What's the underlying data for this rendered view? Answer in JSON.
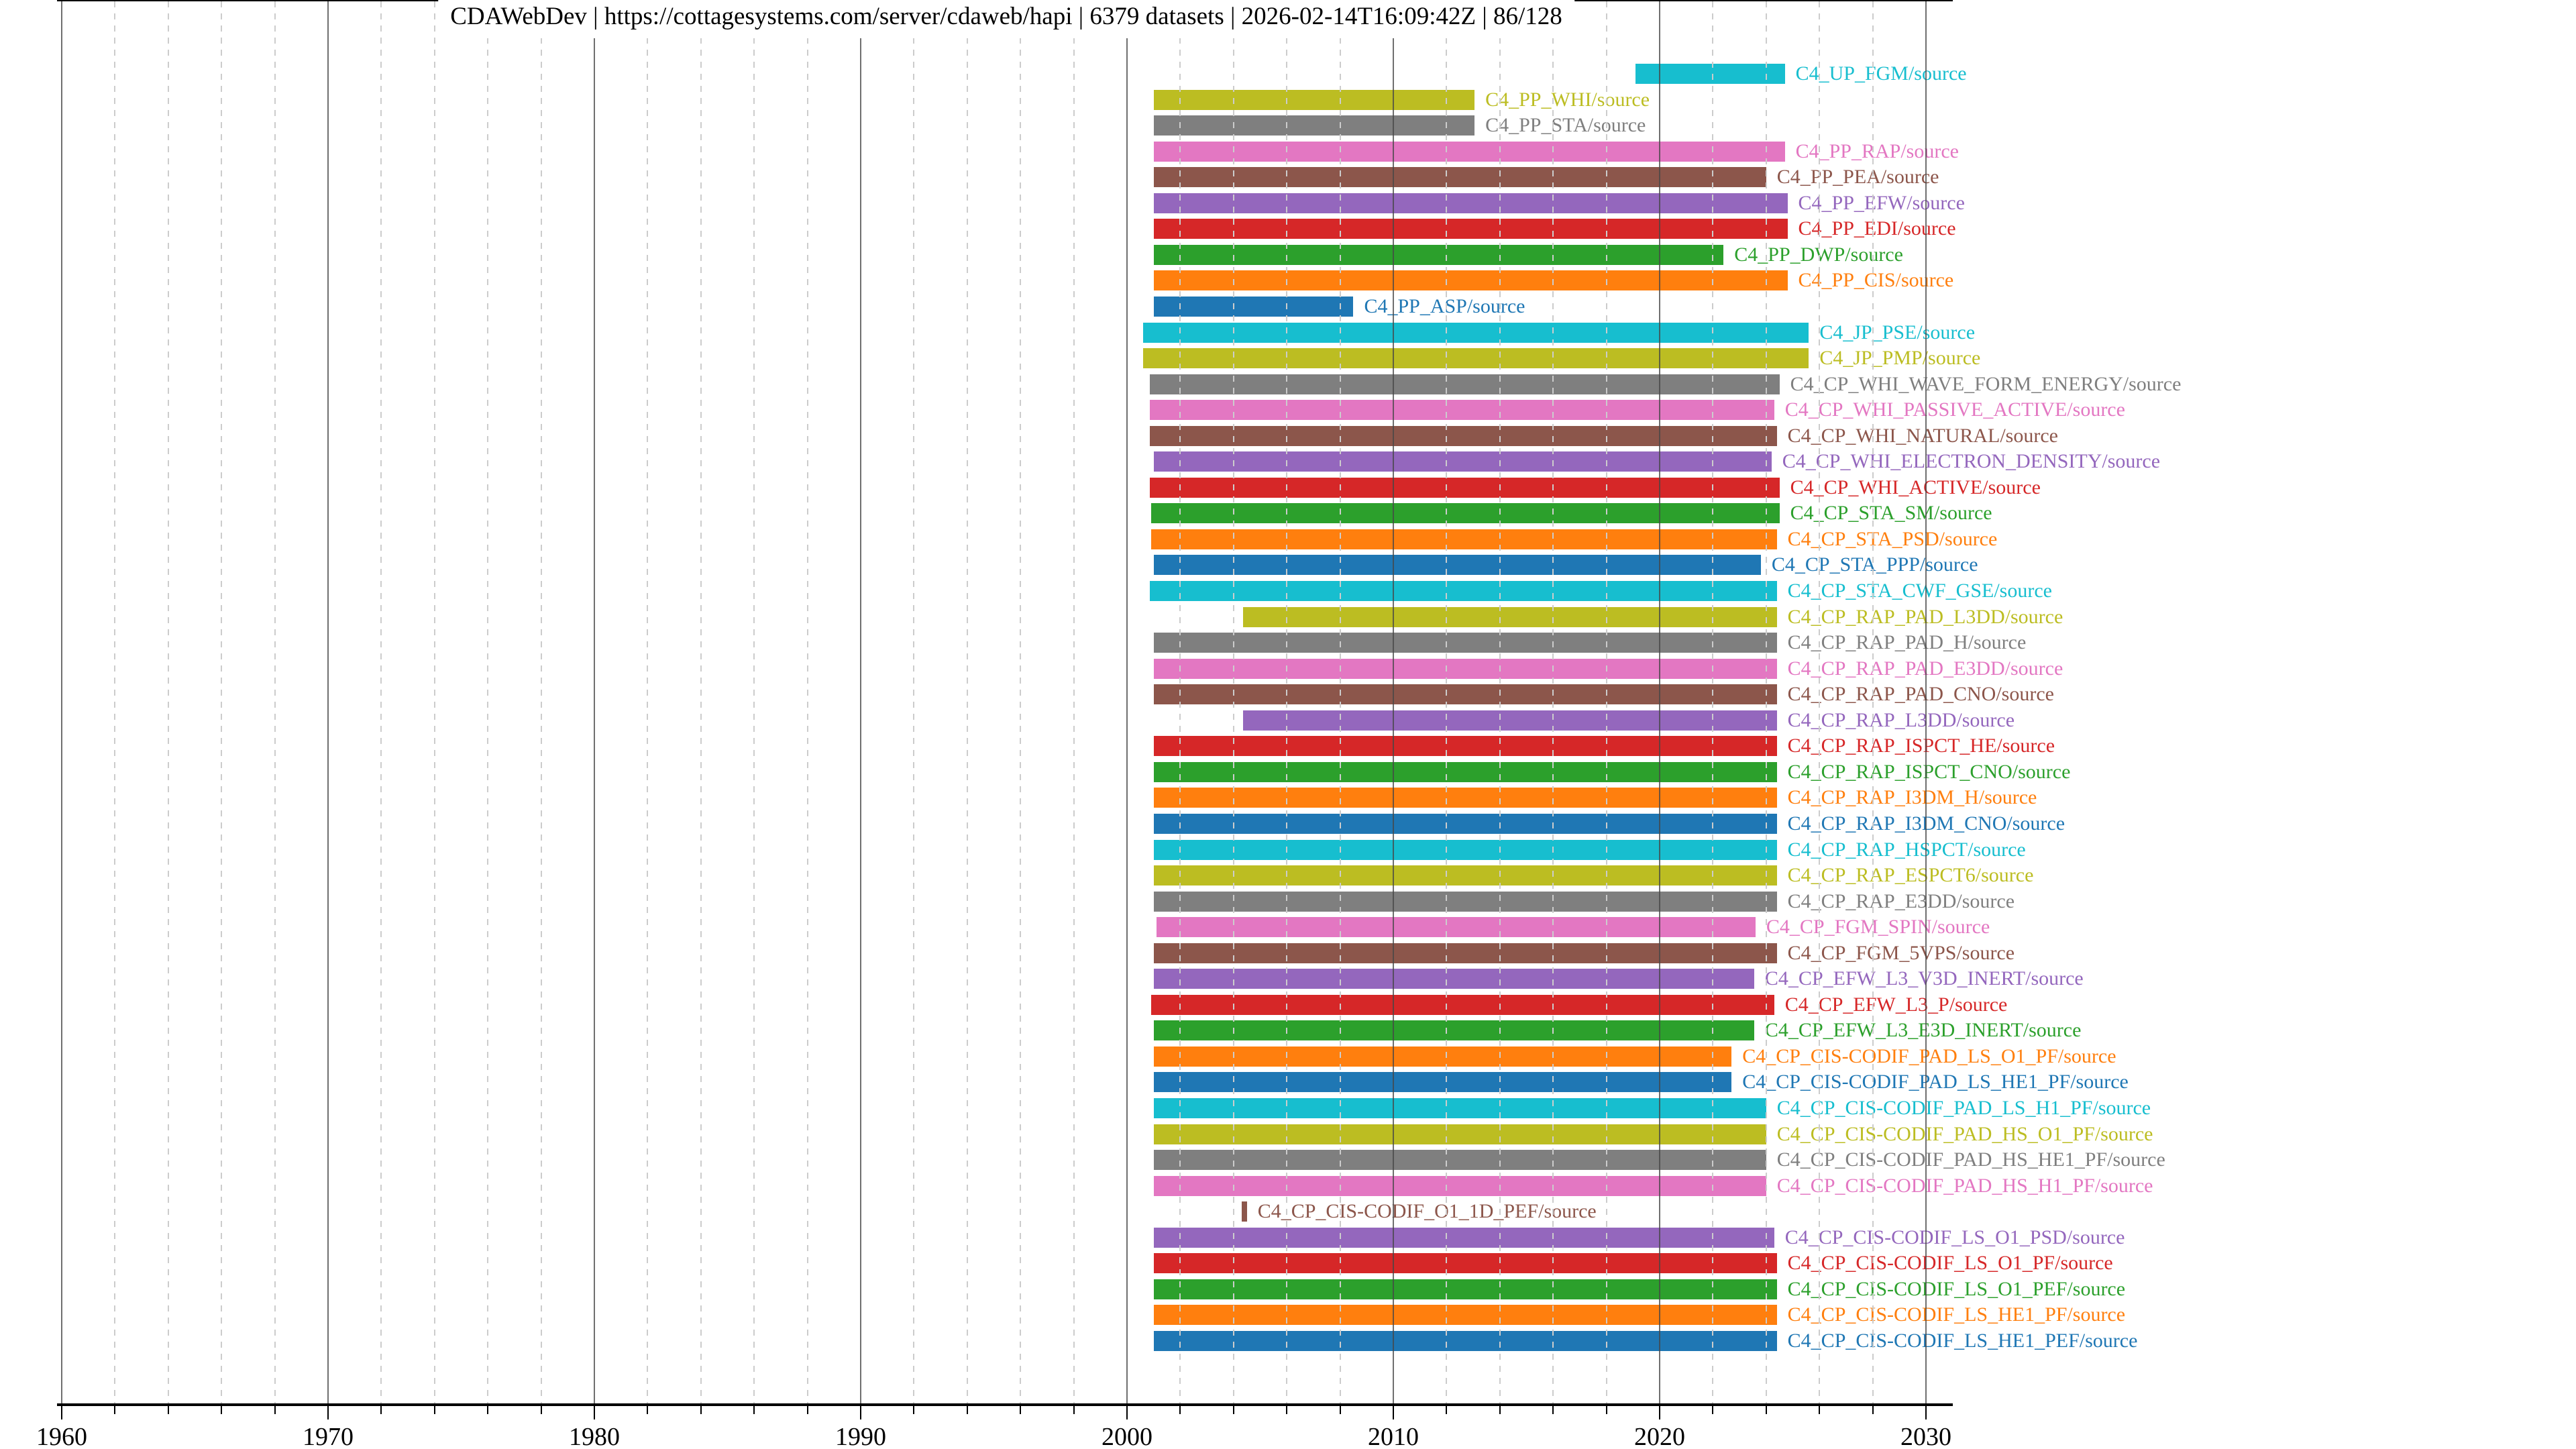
{
  "title": "CDAWebDev | https://cottagesystems.com/server/cdaweb/hapi | 6379 datasets | 2026-02-14T16:09:42Z | 86/128",
  "axis": {
    "major_ticks": [
      {
        "year": 1960,
        "label": "1960"
      },
      {
        "year": 1970,
        "label": "1970"
      },
      {
        "year": 1980,
        "label": "1980"
      },
      {
        "year": 1990,
        "label": "1990"
      },
      {
        "year": 2000,
        "label": "2000"
      },
      {
        "year": 2010,
        "label": "2010"
      },
      {
        "year": 2020,
        "label": "2020"
      },
      {
        "year": 2030,
        "label": "2030"
      }
    ],
    "minor_step_years": 2,
    "xmin": 1959.8,
    "xmax": 2031.1,
    "grid_major_color": "#464646",
    "grid_minor_color": "#cccccc"
  },
  "chart_data": {
    "type": "bar",
    "orientation": "horizontal-range",
    "title": "CDAWebDev | https://cottagesystems.com/server/cdaweb/hapi | 6379 datasets | 2026-02-14T16:09:42Z | 86/128",
    "xlabel": "",
    "ylabel": "",
    "xlim": [
      1959.8,
      2031.1
    ],
    "grid": "vertical, major solid per decade, minor dashed every 2 years",
    "legend": "none (labels drawn at right end of each bar, same color as bar)",
    "rows": [
      {
        "label": "C4_UP_FGM/source",
        "start": 2019.1,
        "end": 2024.7,
        "color": "#17becf"
      },
      {
        "label": "C4_PP_WHI/source",
        "start": 2001.0,
        "end": 2013.05,
        "color": "#bcbd22"
      },
      {
        "label": "C4_PP_STA/source",
        "start": 2001.0,
        "end": 2013.05,
        "color": "#7f7f7f"
      },
      {
        "label": "C4_PP_RAP/source",
        "start": 2001.0,
        "end": 2024.7,
        "color": "#e377c2"
      },
      {
        "label": "C4_PP_PEA/source",
        "start": 2001.0,
        "end": 2024.0,
        "color": "#8c564b"
      },
      {
        "label": "C4_PP_EFW/source",
        "start": 2001.0,
        "end": 2024.8,
        "color": "#9467bd"
      },
      {
        "label": "C4_PP_EDI/source",
        "start": 2001.0,
        "end": 2024.8,
        "color": "#d62728"
      },
      {
        "label": "C4_PP_DWP/source",
        "start": 2001.0,
        "end": 2022.4,
        "color": "#2ca02c"
      },
      {
        "label": "C4_PP_CIS/source",
        "start": 2001.0,
        "end": 2024.8,
        "color": "#ff7f0e"
      },
      {
        "label": "C4_PP_ASP/source",
        "start": 2001.0,
        "end": 2008.5,
        "color": "#1f77b4"
      },
      {
        "label": "C4_JP_PSE/source",
        "start": 2000.6,
        "end": 2025.6,
        "color": "#17becf"
      },
      {
        "label": "C4_JP_PMP/source",
        "start": 2000.6,
        "end": 2025.6,
        "color": "#bcbd22"
      },
      {
        "label": "C4_CP_WHI_WAVE_FORM_ENERGY/source",
        "start": 2000.85,
        "end": 2024.5,
        "color": "#7f7f7f"
      },
      {
        "label": "C4_CP_WHI_PASSIVE_ACTIVE/source",
        "start": 2000.85,
        "end": 2024.3,
        "color": "#e377c2"
      },
      {
        "label": "C4_CP_WHI_NATURAL/source",
        "start": 2000.85,
        "end": 2024.4,
        "color": "#8c564b"
      },
      {
        "label": "C4_CP_WHI_ELECTRON_DENSITY/source",
        "start": 2001.0,
        "end": 2024.2,
        "color": "#9467bd"
      },
      {
        "label": "C4_CP_WHI_ACTIVE/source",
        "start": 2000.85,
        "end": 2024.5,
        "color": "#d62728"
      },
      {
        "label": "C4_CP_STA_SM/source",
        "start": 2000.9,
        "end": 2024.5,
        "color": "#2ca02c"
      },
      {
        "label": "C4_CP_STA_PSD/source",
        "start": 2000.9,
        "end": 2024.4,
        "color": "#ff7f0e"
      },
      {
        "label": "C4_CP_STA_PPP/source",
        "start": 2001.0,
        "end": 2023.8,
        "color": "#1f77b4"
      },
      {
        "label": "C4_CP_STA_CWF_GSE/source",
        "start": 2000.85,
        "end": 2024.4,
        "color": "#17becf"
      },
      {
        "label": "C4_CP_RAP_PAD_L3DD/source",
        "start": 2004.35,
        "end": 2024.4,
        "color": "#bcbd22"
      },
      {
        "label": "C4_CP_RAP_PAD_H/source",
        "start": 2001.0,
        "end": 2024.4,
        "color": "#7f7f7f"
      },
      {
        "label": "C4_CP_RAP_PAD_E3DD/source",
        "start": 2001.0,
        "end": 2024.4,
        "color": "#e377c2"
      },
      {
        "label": "C4_CP_RAP_PAD_CNO/source",
        "start": 2001.0,
        "end": 2024.4,
        "color": "#8c564b"
      },
      {
        "label": "C4_CP_RAP_L3DD/source",
        "start": 2004.35,
        "end": 2024.4,
        "color": "#9467bd"
      },
      {
        "label": "C4_CP_RAP_ISPCT_HE/source",
        "start": 2001.0,
        "end": 2024.4,
        "color": "#d62728"
      },
      {
        "label": "C4_CP_RAP_ISPCT_CNO/source",
        "start": 2001.0,
        "end": 2024.4,
        "color": "#2ca02c"
      },
      {
        "label": "C4_CP_RAP_I3DM_H/source",
        "start": 2001.0,
        "end": 2024.4,
        "color": "#ff7f0e"
      },
      {
        "label": "C4_CP_RAP_I3DM_CNO/source",
        "start": 2001.0,
        "end": 2024.4,
        "color": "#1f77b4"
      },
      {
        "label": "C4_CP_RAP_HSPCT/source",
        "start": 2001.0,
        "end": 2024.4,
        "color": "#17becf"
      },
      {
        "label": "C4_CP_RAP_ESPCT6/source",
        "start": 2001.0,
        "end": 2024.4,
        "color": "#bcbd22"
      },
      {
        "label": "C4_CP_RAP_E3DD/source",
        "start": 2001.0,
        "end": 2024.4,
        "color": "#7f7f7f"
      },
      {
        "label": "C4_CP_FGM_SPIN/source",
        "start": 2001.1,
        "end": 2023.6,
        "color": "#e377c2"
      },
      {
        "label": "C4_CP_FGM_5VPS/source",
        "start": 2001.0,
        "end": 2024.4,
        "color": "#8c564b"
      },
      {
        "label": "C4_CP_EFW_L3_V3D_INERT/source",
        "start": 2001.0,
        "end": 2023.55,
        "color": "#9467bd"
      },
      {
        "label": "C4_CP_EFW_L3_P/source",
        "start": 2000.9,
        "end": 2024.3,
        "color": "#d62728"
      },
      {
        "label": "C4_CP_EFW_L3_E3D_INERT/source",
        "start": 2001.0,
        "end": 2023.55,
        "color": "#2ca02c"
      },
      {
        "label": "C4_CP_CIS-CODIF_PAD_LS_O1_PF/source",
        "start": 2001.0,
        "end": 2022.7,
        "color": "#ff7f0e"
      },
      {
        "label": "C4_CP_CIS-CODIF_PAD_LS_HE1_PF/source",
        "start": 2001.0,
        "end": 2022.7,
        "color": "#1f77b4"
      },
      {
        "label": "C4_CP_CIS-CODIF_PAD_LS_H1_PF/source",
        "start": 2001.0,
        "end": 2024.0,
        "color": "#17becf"
      },
      {
        "label": "C4_CP_CIS-CODIF_PAD_HS_O1_PF/source",
        "start": 2001.0,
        "end": 2024.0,
        "color": "#bcbd22"
      },
      {
        "label": "C4_CP_CIS-CODIF_PAD_HS_HE1_PF/source",
        "start": 2001.0,
        "end": 2024.0,
        "color": "#7f7f7f"
      },
      {
        "label": "C4_CP_CIS-CODIF_PAD_HS_H1_PF/source",
        "start": 2001.0,
        "end": 2024.0,
        "color": "#e377c2"
      },
      {
        "label": "C4_CP_CIS-CODIF_O1_1D_PEF/source",
        "start": 2004.3,
        "end": 2004.5,
        "color": "#8c564b"
      },
      {
        "label": "C4_CP_CIS-CODIF_LS_O1_PSD/source",
        "start": 2001.0,
        "end": 2024.3,
        "color": "#9467bd"
      },
      {
        "label": "C4_CP_CIS-CODIF_LS_O1_PF/source",
        "start": 2001.0,
        "end": 2024.4,
        "color": "#d62728"
      },
      {
        "label": "C4_CP_CIS-CODIF_LS_O1_PEF/source",
        "start": 2001.0,
        "end": 2024.4,
        "color": "#2ca02c"
      },
      {
        "label": "C4_CP_CIS-CODIF_LS_HE1_PF/source",
        "start": 2001.0,
        "end": 2024.4,
        "color": "#ff7f0e"
      },
      {
        "label": "C4_CP_CIS-CODIF_LS_HE1_PEF/source",
        "start": 2001.0,
        "end": 2024.4,
        "color": "#1f77b4"
      }
    ]
  }
}
